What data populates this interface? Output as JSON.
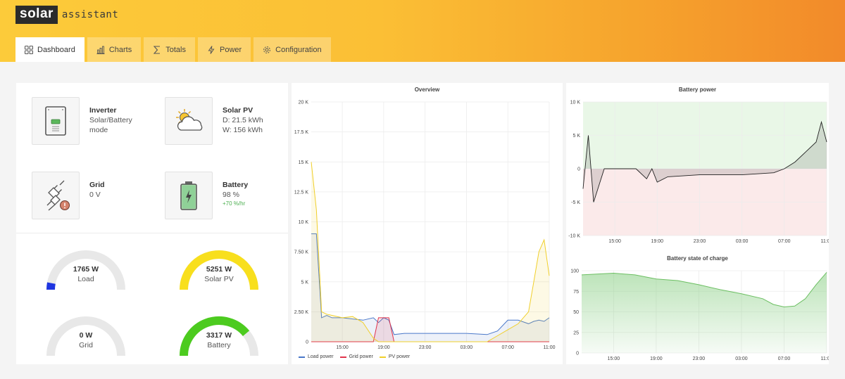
{
  "app": {
    "logo_box": "solar",
    "logo_text": "assistant"
  },
  "tabs": [
    {
      "label": "Dashboard",
      "icon": "grid-icon",
      "active": true
    },
    {
      "label": "Charts",
      "icon": "bar-chart-icon"
    },
    {
      "label": "Totals",
      "icon": "sigma-icon"
    },
    {
      "label": "Power",
      "icon": "bolt-icon"
    },
    {
      "label": "Configuration",
      "icon": "gear-icon"
    }
  ],
  "cards": {
    "inverter": {
      "title": "Inverter",
      "line1": "Solar/Battery",
      "line2": "mode"
    },
    "solar": {
      "title": "Solar PV",
      "line1": "D: 21.5 kWh",
      "line2": "W: 156 kWh"
    },
    "grid": {
      "title": "Grid",
      "line1": "0 V"
    },
    "battery": {
      "title": "Battery",
      "line1": "98 %",
      "rate": "+70 %/hr"
    }
  },
  "gauges": {
    "load": {
      "value": "1765 W",
      "label": "Load",
      "fraction": 0.06,
      "color": "#1f35e0"
    },
    "solar": {
      "value": "5251 W",
      "label": "Solar PV",
      "fraction": 1.0,
      "color": "#f8df1d"
    },
    "grid": {
      "value": "0 W",
      "label": "Grid",
      "fraction": 0.0,
      "color": "#d0d0d0"
    },
    "battery": {
      "value": "3317 W",
      "label": "Battery",
      "fraction": 0.78,
      "color": "#4ccb1f"
    }
  },
  "overview": {
    "title": "Overview",
    "y_ticks": [
      "20 K",
      "17.5 K",
      "15 K",
      "12.5 K",
      "10 K",
      "7.50 K",
      "5 K",
      "2.50 K",
      "0"
    ],
    "x_ticks": [
      "15:00",
      "19:00",
      "23:00",
      "03:00",
      "07:00",
      "11:00"
    ],
    "legend": [
      {
        "label": "Load power",
        "color": "#4a78c9"
      },
      {
        "label": "Grid power",
        "color": "#e0334b"
      },
      {
        "label": "PV power",
        "color": "#f0cf2a"
      }
    ]
  },
  "battery_power": {
    "title": "Battery power",
    "y_ticks": [
      "10 K",
      "5 K",
      "0",
      "-5 K",
      "-10 K"
    ],
    "x_ticks": [
      "15:00",
      "19:00",
      "23:00",
      "03:00",
      "07:00",
      "11:00"
    ]
  },
  "battery_soc": {
    "title": "Battery state of charge",
    "y_ticks": [
      "100",
      "75",
      "50",
      "25",
      "0"
    ],
    "x_ticks": [
      "15:00",
      "19:00",
      "23:00",
      "03:00",
      "07:00",
      "11:00"
    ]
  },
  "chart_data": [
    {
      "type": "line",
      "title": "Overview",
      "ylim": [
        0,
        20000
      ],
      "x": [
        "12:00",
        "12:30",
        "13:00",
        "13:30",
        "14:00",
        "15:00",
        "16:00",
        "17:00",
        "18:00",
        "18:30",
        "19:00",
        "19:30",
        "20:00",
        "21:00",
        "23:00",
        "01:00",
        "03:00",
        "05:00",
        "06:00",
        "07:00",
        "08:00",
        "09:00",
        "09:30",
        "10:00",
        "10:30",
        "11:00"
      ],
      "series": [
        {
          "name": "Load power",
          "values": [
            9000,
            9000,
            2000,
            2200,
            2000,
            2000,
            1900,
            1800,
            2000,
            1600,
            2000,
            1800,
            600,
            700,
            700,
            700,
            700,
            600,
            900,
            1800,
            1800,
            1500,
            1700,
            1800,
            1700,
            2000
          ]
        },
        {
          "name": "Grid power",
          "values": [
            0,
            0,
            0,
            0,
            0,
            0,
            0,
            0,
            0,
            2000,
            2000,
            2000,
            0,
            0,
            0,
            0,
            0,
            0,
            0,
            0,
            0,
            0,
            0,
            0,
            0,
            0
          ]
        },
        {
          "name": "PV power",
          "values": [
            15000,
            11000,
            2500,
            2300,
            2200,
            2000,
            2100,
            1600,
            300,
            0,
            0,
            0,
            0,
            0,
            0,
            0,
            0,
            0,
            500,
            1000,
            1500,
            2500,
            5000,
            7500,
            8500,
            5500
          ]
        }
      ],
      "legend": "bottom-left"
    },
    {
      "type": "line",
      "title": "Battery power",
      "ylim": [
        -10000,
        10000
      ],
      "x": [
        "12:00",
        "12:30",
        "13:00",
        "14:00",
        "17:00",
        "18:00",
        "18:30",
        "19:00",
        "20:00",
        "23:00",
        "03:00",
        "06:00",
        "07:00",
        "08:00",
        "09:00",
        "10:00",
        "10:30",
        "11:00"
      ],
      "series": [
        {
          "name": "Battery power",
          "values": [
            -3000,
            5000,
            -5000,
            0,
            0,
            -1500,
            0,
            -2000,
            -1200,
            -900,
            -900,
            -600,
            0,
            1000,
            2500,
            4000,
            7000,
            4000
          ]
        }
      ]
    },
    {
      "type": "area",
      "title": "Battery state of charge",
      "ylim": [
        0,
        100
      ],
      "x": [
        "12:00",
        "15:00",
        "17:00",
        "19:00",
        "21:00",
        "23:00",
        "01:00",
        "03:00",
        "05:00",
        "06:00",
        "07:00",
        "08:00",
        "09:00",
        "10:00",
        "11:00"
      ],
      "series": [
        {
          "name": "Battery state of charge",
          "values": [
            95,
            97,
            95,
            90,
            88,
            83,
            77,
            72,
            66,
            59,
            56,
            57,
            66,
            83,
            98
          ]
        }
      ]
    }
  ]
}
